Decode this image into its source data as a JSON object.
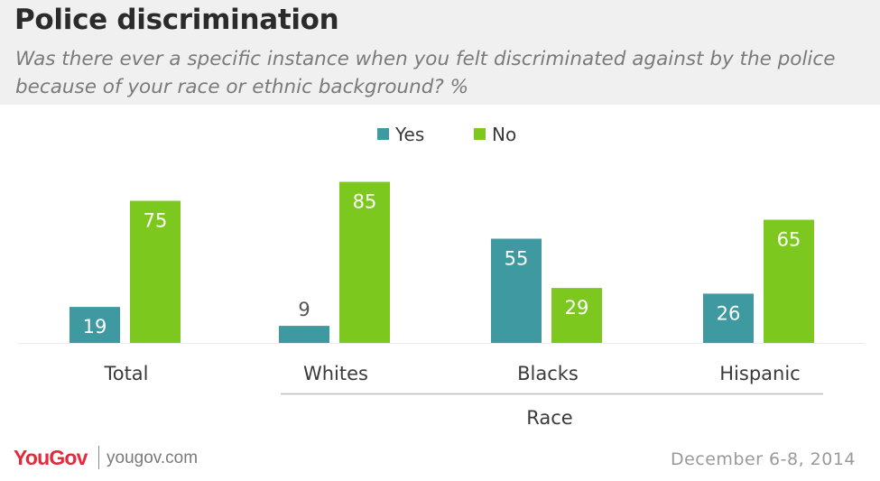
{
  "header": {
    "title": "Police discrimination",
    "subtitle": "Was there ever a specific instance when you felt discriminated against by the police because of your race or ethnic background? %"
  },
  "footer": {
    "brand": "YouGov",
    "url": "yougov.com",
    "date": "December 6-8, 2014"
  },
  "colors": {
    "yes": "#3e9aa0",
    "no": "#7dc81f",
    "background": "#ffffff",
    "header_bg": "#f0f0f0"
  },
  "chart_data": {
    "type": "bar",
    "categories": [
      "Total",
      "Whites",
      "Blacks",
      "Hispanic"
    ],
    "series": [
      {
        "name": "Yes",
        "values": [
          19,
          9,
          55,
          26
        ]
      },
      {
        "name": "No",
        "values": [
          75,
          85,
          29,
          65
        ]
      }
    ],
    "group_label": "Race",
    "group_categories": [
      "Whites",
      "Blacks",
      "Hispanic"
    ],
    "ylim": [
      0,
      100
    ],
    "grid": false,
    "legend_position": "top-center",
    "data_labels": true
  }
}
